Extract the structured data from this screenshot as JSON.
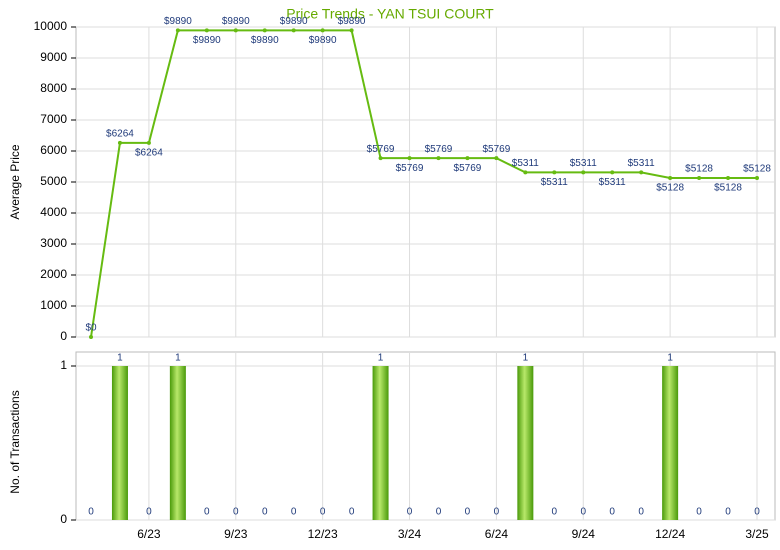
{
  "chart_data": [
    {
      "type": "line",
      "title": "Price Trends - YAN TSUI COURT",
      "ylabel": "Average Price",
      "color": "#66bb11",
      "values": [
        0,
        6264,
        6264,
        9890,
        9890,
        9890,
        9890,
        9890,
        9890,
        9890,
        5769,
        5769,
        5769,
        5769,
        5769,
        5311,
        5311,
        5311,
        5311,
        5311,
        5128,
        5128,
        5128,
        5128
      ],
      "value_labels": [
        "$0",
        "$6264",
        "$6264",
        "$9890",
        "$9890",
        "$9890",
        "$9890",
        "$9890",
        "$9890",
        "$9890",
        "$5769",
        "$5769",
        "$5769",
        "$5769",
        "$5769",
        "$5311",
        "$5311",
        "$5311",
        "$5311",
        "$5311",
        "$5128",
        "$5128",
        "$5128",
        "$5128"
      ],
      "ylim": [
        0,
        10000
      ],
      "yticks": [
        0,
        1000,
        2000,
        3000,
        4000,
        5000,
        6000,
        7000,
        8000,
        9000,
        10000
      ],
      "grid": true
    },
    {
      "type": "bar",
      "ylabel": "No. of Transactions",
      "color": "#66bb11",
      "categories": [
        null,
        null,
        "6/23",
        null,
        null,
        "9/23",
        null,
        null,
        "12/23",
        null,
        null,
        "3/24",
        null,
        null,
        "6/24",
        null,
        null,
        "9/24",
        null,
        null,
        "12/24",
        null,
        null,
        "3/25"
      ],
      "values": [
        0,
        1,
        0,
        1,
        0,
        0,
        0,
        0,
        0,
        0,
        1,
        0,
        0,
        0,
        0,
        1,
        0,
        0,
        0,
        0,
        1,
        0,
        0,
        0
      ],
      "ylim": [
        0,
        1
      ],
      "yticks": [
        0,
        1
      ],
      "grid": true
    }
  ]
}
